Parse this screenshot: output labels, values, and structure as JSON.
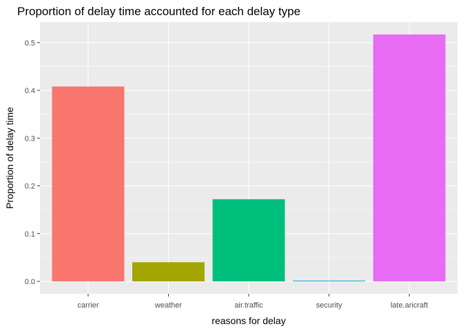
{
  "chart_data": {
    "type": "bar",
    "title": "Proportion of delay time accounted for each delay type",
    "xlabel": "reasons for delay",
    "ylabel": "Proportion of delay time",
    "categories": [
      "carrier",
      "weather",
      "air.traffic",
      "security",
      "late.aricraft"
    ],
    "values": [
      0.408,
      0.04,
      0.172,
      0.0015,
      0.517
    ],
    "colors": [
      "#F8766D",
      "#A3A500",
      "#00BF7D",
      "#00B0F6",
      "#E76BF3"
    ],
    "ylim": [
      -0.026,
      0.543
    ],
    "yticks": [
      0.0,
      0.1,
      0.2,
      0.3,
      0.4,
      0.5
    ],
    "ytick_labels": [
      "0.0",
      "0.1",
      "0.2",
      "0.3",
      "0.4",
      "0.5"
    ],
    "grid": true,
    "legend": "none",
    "panel_background": "#EBEBEB",
    "grid_color": "#FFFFFF"
  }
}
